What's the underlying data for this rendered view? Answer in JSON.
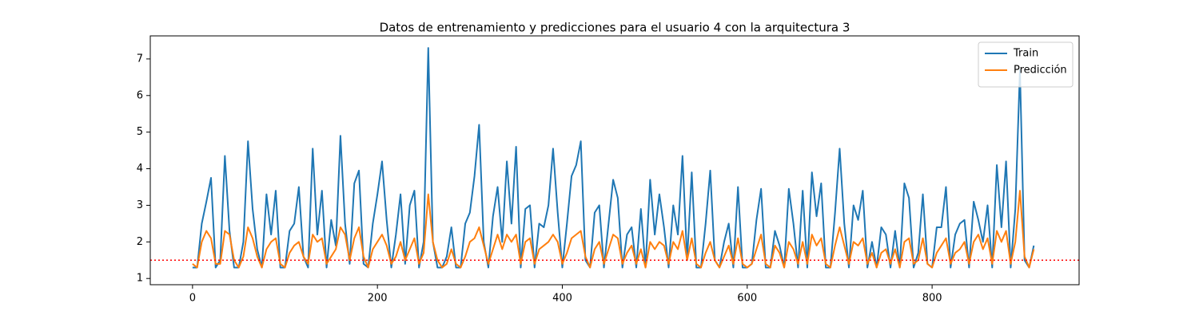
{
  "chart_data": {
    "type": "line",
    "title": "Datos de entrenamiento y predicciones para el usuario 4 con la arquitectura 3",
    "x": [
      0,
      5,
      10,
      15,
      20,
      25,
      30,
      35,
      40,
      45,
      50,
      55,
      60,
      65,
      70,
      75,
      80,
      85,
      90,
      95,
      100,
      105,
      110,
      115,
      120,
      125,
      130,
      135,
      140,
      145,
      150,
      155,
      160,
      165,
      170,
      175,
      180,
      185,
      190,
      195,
      200,
      205,
      210,
      215,
      220,
      225,
      230,
      235,
      240,
      245,
      250,
      255,
      260,
      265,
      270,
      275,
      280,
      285,
      290,
      295,
      300,
      305,
      310,
      315,
      320,
      325,
      330,
      335,
      340,
      345,
      350,
      355,
      360,
      365,
      370,
      375,
      380,
      385,
      390,
      395,
      400,
      405,
      410,
      415,
      420,
      425,
      430,
      435,
      440,
      445,
      450,
      455,
      460,
      465,
      470,
      475,
      480,
      485,
      490,
      495,
      500,
      505,
      510,
      515,
      520,
      525,
      530,
      535,
      540,
      545,
      550,
      555,
      560,
      565,
      570,
      575,
      580,
      585,
      590,
      595,
      600,
      605,
      610,
      615,
      620,
      625,
      630,
      635,
      640,
      645,
      650,
      655,
      660,
      665,
      670,
      675,
      680,
      685,
      690,
      695,
      700,
      705,
      710,
      715,
      720,
      725,
      730,
      735,
      740,
      745,
      750,
      755,
      760,
      765,
      770,
      775,
      780,
      785,
      790,
      795,
      800,
      805,
      810,
      815,
      820,
      825,
      830,
      835,
      840,
      845,
      850,
      855,
      860,
      865,
      870,
      875,
      880,
      885,
      890,
      895,
      900,
      905,
      910
    ],
    "series": [
      {
        "name": "Train",
        "color": "#1f77b4",
        "values": [
          1.3,
          1.3,
          2.5,
          3.1,
          3.75,
          1.3,
          1.5,
          4.35,
          2.3,
          1.3,
          1.3,
          2.0,
          4.75,
          2.9,
          1.8,
          1.3,
          3.3,
          2.2,
          3.4,
          1.3,
          1.3,
          2.3,
          2.5,
          3.5,
          1.6,
          1.3,
          4.55,
          2.2,
          3.4,
          1.3,
          2.6,
          1.9,
          4.9,
          2.5,
          1.4,
          3.6,
          3.95,
          1.4,
          1.3,
          2.5,
          3.3,
          4.2,
          2.6,
          1.3,
          2.2,
          3.3,
          1.4,
          3.0,
          3.4,
          1.3,
          2.0,
          7.3,
          2.0,
          1.3,
          1.3,
          1.6,
          2.4,
          1.3,
          1.3,
          2.5,
          2.8,
          3.8,
          5.2,
          2.0,
          1.3,
          2.7,
          3.5,
          2.0,
          4.2,
          2.5,
          4.6,
          1.3,
          2.9,
          3.0,
          1.3,
          2.5,
          2.4,
          3.0,
          4.55,
          2.8,
          1.3,
          2.5,
          3.8,
          4.1,
          4.75,
          1.5,
          1.3,
          2.8,
          3.0,
          1.3,
          2.5,
          3.7,
          3.2,
          1.3,
          2.2,
          2.4,
          1.3,
          2.9,
          1.3,
          3.7,
          2.2,
          3.3,
          2.4,
          1.3,
          3.0,
          2.2,
          4.35,
          1.5,
          3.9,
          1.3,
          1.3,
          2.5,
          3.95,
          1.5,
          1.3,
          2.0,
          2.5,
          1.3,
          3.5,
          1.3,
          1.3,
          1.4,
          2.6,
          3.45,
          1.3,
          1.3,
          2.3,
          1.9,
          1.3,
          3.45,
          2.5,
          1.3,
          3.4,
          1.3,
          3.9,
          2.7,
          3.6,
          1.3,
          1.3,
          2.8,
          4.55,
          2.5,
          1.3,
          3.0,
          2.6,
          3.4,
          1.3,
          2.0,
          1.3,
          2.4,
          2.2,
          1.3,
          2.3,
          1.3,
          3.6,
          3.2,
          1.3,
          1.7,
          3.3,
          1.4,
          1.3,
          2.4,
          2.4,
          3.5,
          1.3,
          2.2,
          2.5,
          2.6,
          1.3,
          3.1,
          2.6,
          2.0,
          3.0,
          1.3,
          4.1,
          2.4,
          4.2,
          1.3,
          2.9,
          6.7,
          1.5,
          1.3,
          1.9
        ]
      },
      {
        "name": "Predicción",
        "color": "#ff7f0e",
        "values": [
          1.4,
          1.3,
          2.0,
          2.3,
          2.1,
          1.4,
          1.4,
          2.3,
          2.2,
          1.5,
          1.3,
          1.6,
          2.4,
          2.1,
          1.6,
          1.3,
          1.8,
          2.0,
          2.1,
          1.4,
          1.3,
          1.7,
          1.9,
          2.0,
          1.6,
          1.4,
          2.2,
          2.0,
          2.1,
          1.4,
          1.6,
          1.8,
          2.4,
          2.2,
          1.5,
          2.1,
          2.4,
          1.6,
          1.3,
          1.8,
          2.0,
          2.2,
          1.9,
          1.4,
          1.6,
          2.0,
          1.5,
          1.8,
          2.1,
          1.4,
          1.7,
          3.3,
          2.0,
          1.5,
          1.3,
          1.4,
          1.8,
          1.4,
          1.3,
          1.6,
          2.0,
          2.1,
          2.4,
          1.9,
          1.4,
          1.8,
          2.2,
          1.8,
          2.2,
          2.0,
          2.2,
          1.4,
          2.0,
          2.1,
          1.4,
          1.8,
          1.9,
          2.0,
          2.2,
          2.0,
          1.4,
          1.7,
          2.1,
          2.2,
          2.3,
          1.6,
          1.3,
          1.8,
          2.0,
          1.4,
          1.8,
          2.2,
          2.1,
          1.4,
          1.7,
          1.9,
          1.4,
          1.8,
          1.3,
          2.0,
          1.8,
          2.0,
          1.9,
          1.4,
          2.0,
          1.8,
          2.3,
          1.5,
          2.1,
          1.4,
          1.3,
          1.7,
          2.0,
          1.5,
          1.3,
          1.6,
          1.9,
          1.4,
          2.1,
          1.4,
          1.3,
          1.4,
          1.8,
          2.2,
          1.4,
          1.3,
          1.9,
          1.7,
          1.3,
          2.0,
          1.8,
          1.4,
          2.0,
          1.4,
          2.2,
          1.9,
          2.1,
          1.4,
          1.3,
          1.9,
          2.4,
          1.9,
          1.4,
          2.0,
          1.9,
          2.1,
          1.4,
          1.7,
          1.3,
          1.7,
          1.8,
          1.4,
          1.8,
          1.3,
          2.0,
          2.1,
          1.4,
          1.5,
          2.1,
          1.4,
          1.3,
          1.7,
          1.9,
          2.1,
          1.4,
          1.7,
          1.8,
          2.0,
          1.4,
          2.0,
          2.2,
          1.8,
          2.1,
          1.4,
          2.3,
          2.0,
          2.3,
          1.4,
          2.0,
          3.4,
          1.6,
          1.3,
          1.8
        ]
      }
    ],
    "hline": {
      "value": 1.5,
      "color": "#ff0000"
    },
    "xlim": [
      -45.7,
      959
    ],
    "xticks": [
      0,
      200,
      400,
      600,
      800
    ],
    "ylim": [
      0.83,
      7.63
    ],
    "yticks": [
      1,
      2,
      3,
      4,
      5,
      6,
      7
    ],
    "legend": "upper right"
  }
}
